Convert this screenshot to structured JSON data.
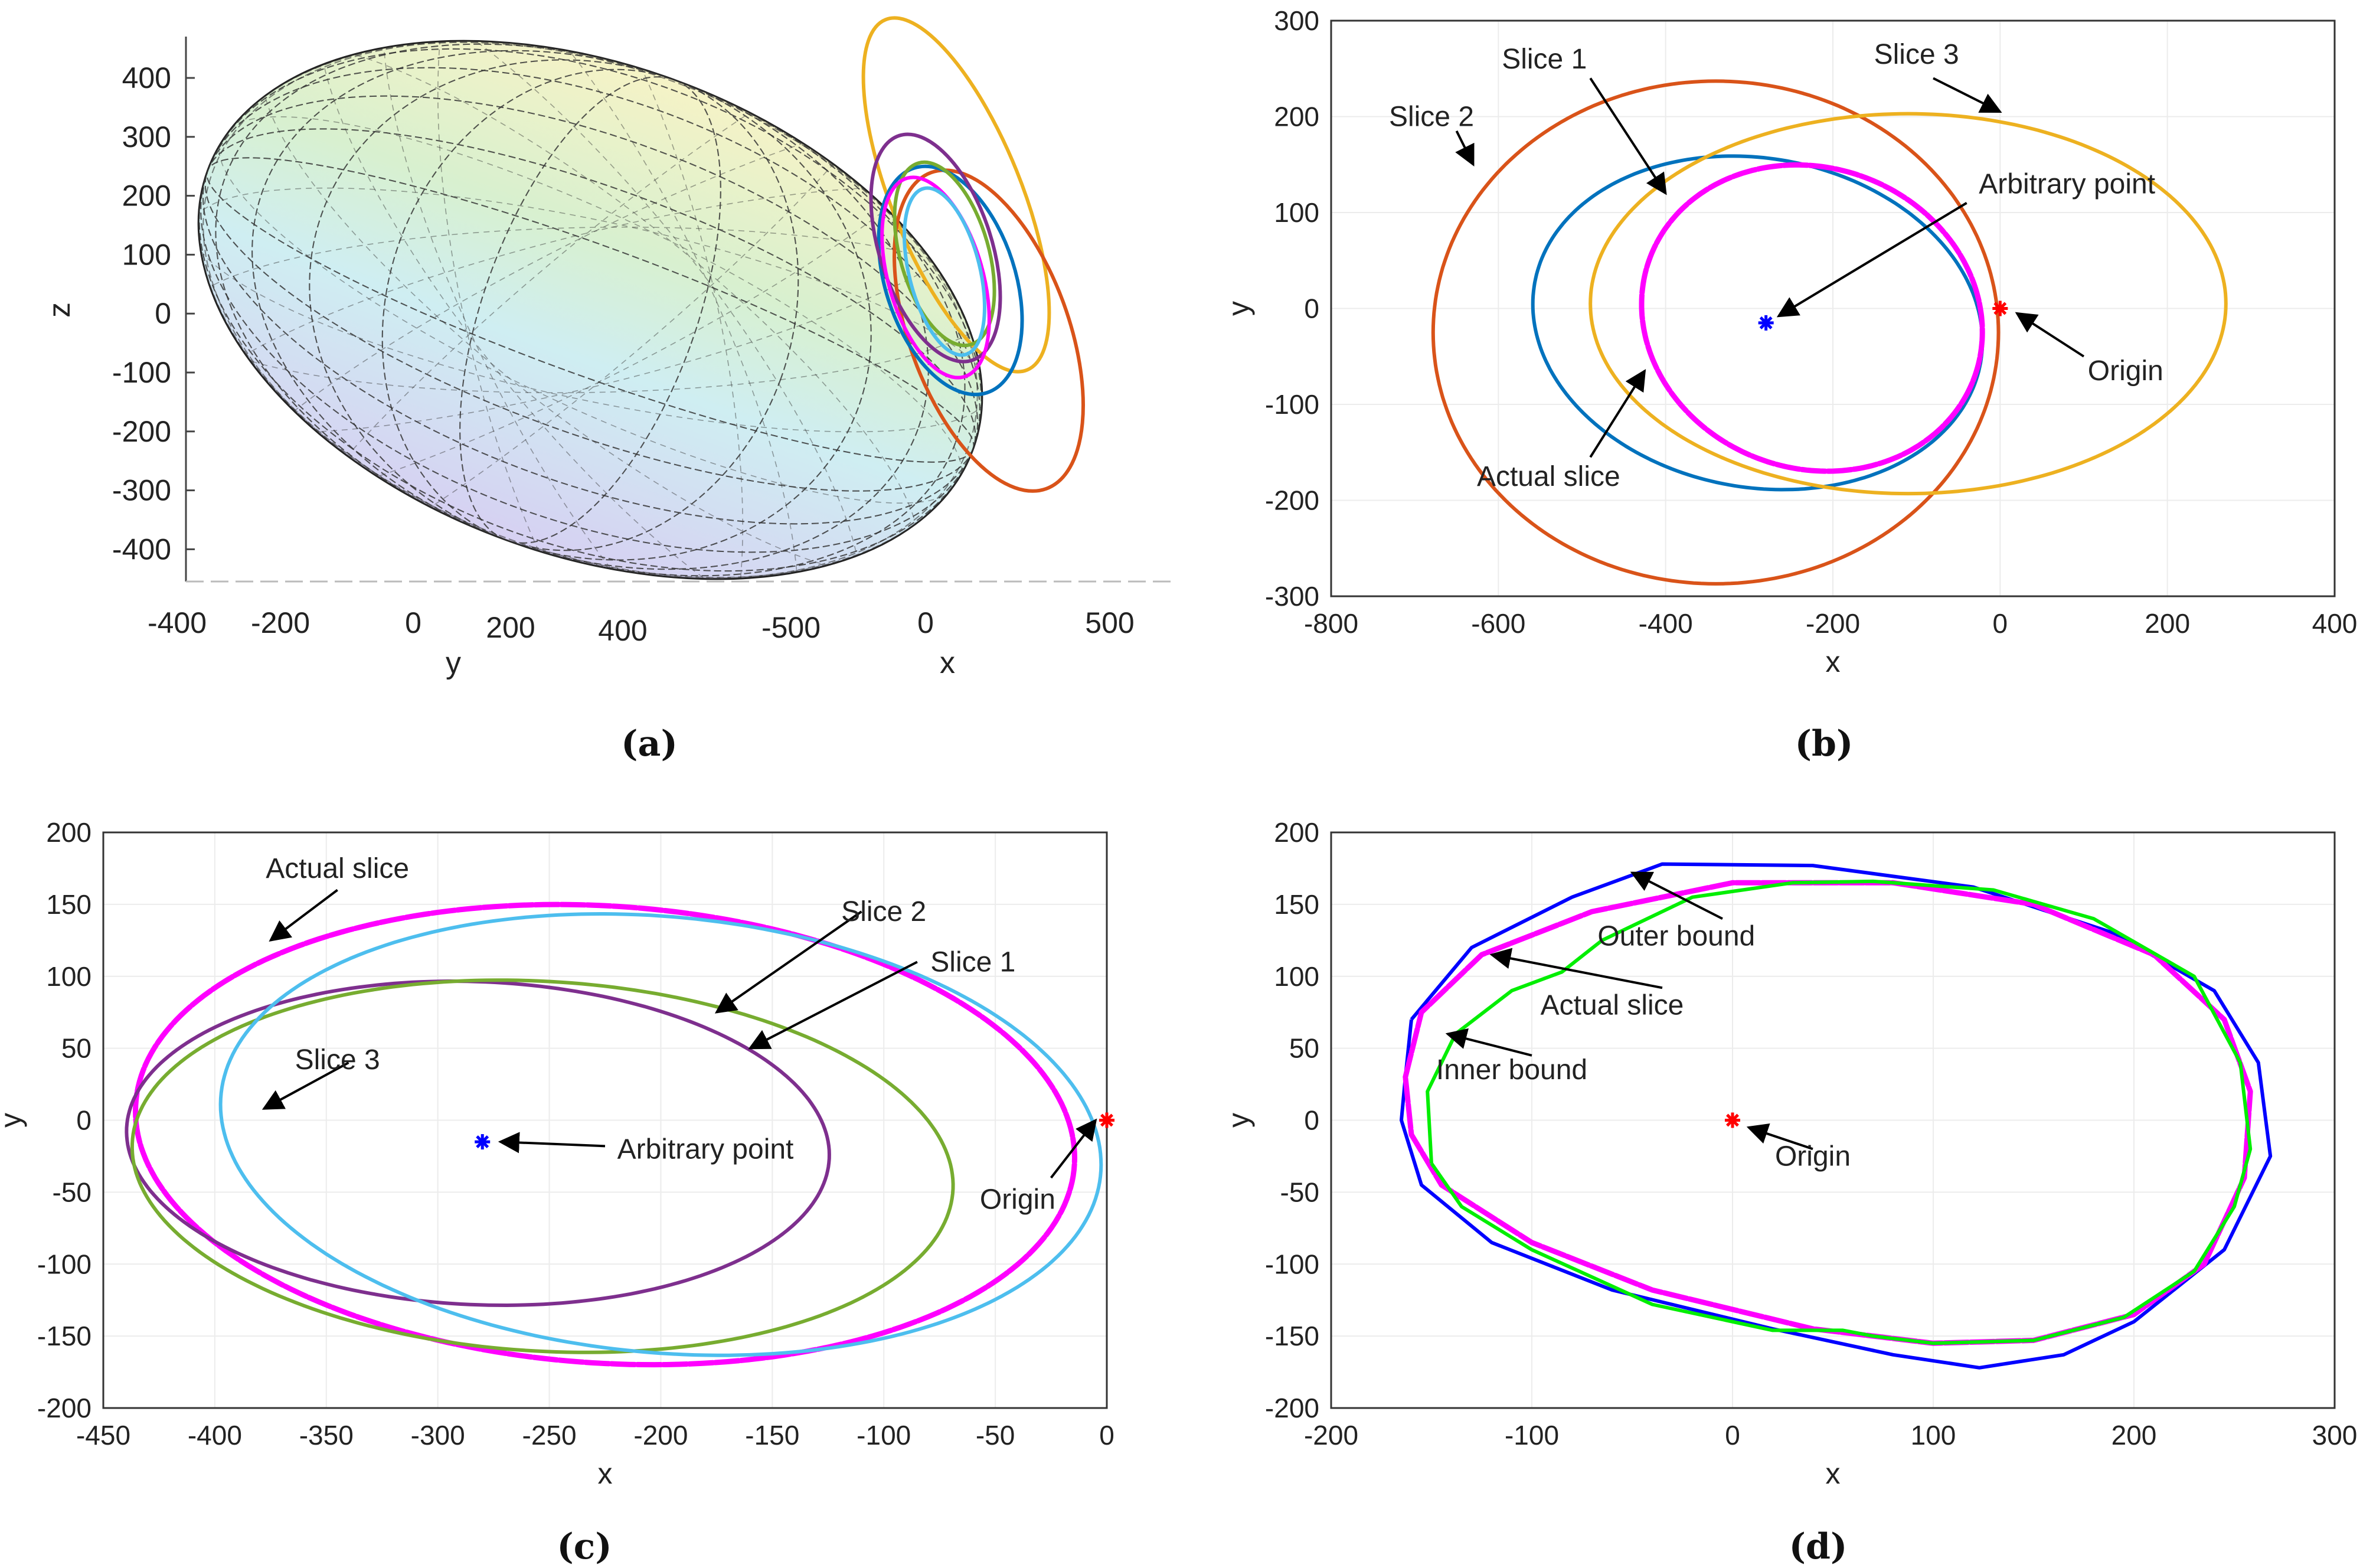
{
  "panels": [
    {
      "id": "a",
      "caption": "(a)",
      "type": "surface3d",
      "xlabel": "y",
      "xlabel2": "x",
      "zlabel": "z",
      "ztick_labels": [
        "400",
        "300",
        "200",
        "100",
        "0",
        "-100",
        "-200",
        "-300",
        "-400"
      ],
      "ytick_labels": [
        "-400",
        "-200",
        "0",
        "200",
        "400"
      ],
      "xtick_labels": [
        "-500",
        "0",
        "500"
      ],
      "ellipse_colors": [
        "#EDB120",
        "#D95319",
        "#0072BD",
        "#77AC30",
        "#7E2F8E",
        "#FF00FF",
        "#4DBEEE"
      ]
    }
  ],
  "chart_data": [
    {
      "panel": "b",
      "type": "line",
      "xlabel": "x",
      "ylabel": "y",
      "xlim": [
        -800,
        400
      ],
      "ylim": [
        -300,
        300
      ],
      "xticks": [
        -800,
        -600,
        -400,
        -200,
        0,
        200,
        400
      ],
      "yticks": [
        -300,
        -200,
        -100,
        0,
        100,
        200,
        300
      ],
      "xtick_labels": [
        "-800",
        "-600",
        "-400",
        "-200",
        "0",
        "200",
        "400"
      ],
      "ytick_labels": [
        "-300",
        "-200",
        "-100",
        "0",
        "100",
        "200",
        "300"
      ],
      "series": [
        {
          "name": "Slice 1",
          "color": "#0072BD",
          "shape": "ellipse",
          "cx": -290,
          "cy": -15,
          "rx": 270,
          "ry": 172,
          "rot": -7
        },
        {
          "name": "Slice 2",
          "color": "#D95319",
          "shape": "ellipse",
          "cx": -340,
          "cy": -25,
          "rx": 338,
          "ry": 262,
          "rot": 0
        },
        {
          "name": "Slice 3",
          "color": "#EDB120",
          "shape": "ellipse",
          "cx": -110,
          "cy": 5,
          "rx": 380,
          "ry": 198,
          "rot": 0
        },
        {
          "name": "Actual slice",
          "color": "#FF00FF",
          "shape": "ellipse",
          "cx": -225,
          "cy": -10,
          "rx": 205,
          "ry": 158,
          "rot": -10,
          "dotted": true
        }
      ],
      "markers": [
        {
          "name": "Arbitrary point",
          "x": -280,
          "y": -15,
          "color": "#0000FF"
        },
        {
          "name": "Origin",
          "x": 0,
          "y": 0,
          "color": "#FF0000"
        }
      ],
      "annotations": [
        {
          "text": "Slice 1",
          "tx": -545,
          "ty": 260,
          "ax": -490,
          "ay": 240,
          "hx": -400,
          "hy": 120
        },
        {
          "text": "Slice 2",
          "tx": -680,
          "ty": 200,
          "ax": -650,
          "ay": 185,
          "hx": -630,
          "hy": 150
        },
        {
          "text": "Slice 3",
          "tx": -100,
          "ty": 265,
          "ax": -80,
          "ay": 240,
          "hx": 0,
          "hy": 205
        },
        {
          "text": "Arbitrary point",
          "tx": 80,
          "ty": 130,
          "ax": -40,
          "ay": 110,
          "hx": -265,
          "hy": -8
        },
        {
          "text": "Origin",
          "tx": 150,
          "ty": -65,
          "ax": 100,
          "ay": -50,
          "hx": 20,
          "hy": -5
        },
        {
          "text": "Actual slice",
          "tx": -540,
          "ty": -175,
          "ax": -490,
          "ay": -155,
          "hx": -425,
          "hy": -65
        }
      ]
    },
    {
      "panel": "c",
      "type": "line",
      "xlabel": "x",
      "ylabel": "y",
      "xlim": [
        -450,
        0
      ],
      "ylim": [
        -200,
        200
      ],
      "xticks": [
        -450,
        -400,
        -350,
        -300,
        -250,
        -200,
        -150,
        -100,
        -50,
        0
      ],
      "yticks": [
        -200,
        -150,
        -100,
        -50,
        0,
        50,
        100,
        150,
        200
      ],
      "xtick_labels": [
        "-450",
        "-400",
        "-350",
        "-300",
        "-250",
        "-200",
        "-150",
        "-100",
        "-50",
        "0"
      ],
      "ytick_labels": [
        "-200",
        "-150",
        "-100",
        "-50",
        "0",
        "50",
        "100",
        "150",
        "200"
      ],
      "series": [
        {
          "name": "Actual slice",
          "color": "#FF00FF",
          "shape": "ellipse",
          "cx": -225,
          "cy": -10,
          "rx": 212,
          "ry": 158,
          "rot": -10,
          "dotted": true
        },
        {
          "name": "Slice 1",
          "color": "#7E2F8E",
          "shape": "ellipse",
          "cx": -282,
          "cy": -16,
          "rx": 158,
          "ry": 112,
          "rot": -6
        },
        {
          "name": "Slice 2",
          "color": "#77AC30",
          "shape": "ellipse",
          "cx": -253,
          "cy": -32,
          "rx": 185,
          "ry": 128,
          "rot": -8
        },
        {
          "name": "Slice 3",
          "color": "#4DBEEE",
          "shape": "ellipse",
          "cx": -200,
          "cy": -10,
          "rx": 200,
          "ry": 150,
          "rot": -14
        }
      ],
      "markers": [
        {
          "name": "Arbitrary point",
          "x": -280,
          "y": -15,
          "color": "#0000FF"
        },
        {
          "name": "Origin",
          "x": 0,
          "y": 0,
          "color": "#FF0000"
        }
      ],
      "annotations": [
        {
          "text": "Actual slice",
          "tx": -345,
          "ty": 175,
          "ax": -345,
          "ay": 160,
          "hx": -375,
          "hy": 125
        },
        {
          "text": "Slice 2",
          "tx": -100,
          "ty": 145,
          "ax": -110,
          "ay": 145,
          "hx": -175,
          "hy": 75
        },
        {
          "text": "Slice 1",
          "tx": -60,
          "ty": 110,
          "ax": -85,
          "ay": 110,
          "hx": -160,
          "hy": 50
        },
        {
          "text": "Slice 3",
          "tx": -345,
          "ty": 42,
          "ax": -340,
          "ay": 40,
          "hx": -378,
          "hy": 8
        },
        {
          "text": "Arbitrary point",
          "tx": -180,
          "ty": -20,
          "ax": -225,
          "ay": -18,
          "hx": -272,
          "hy": -15
        },
        {
          "text": "Origin",
          "tx": -40,
          "ty": -55,
          "ax": -25,
          "ay": -40,
          "hx": -5,
          "hy": 0
        }
      ]
    },
    {
      "panel": "d",
      "type": "line",
      "xlabel": "x",
      "ylabel": "y",
      "xlim": [
        -200,
        300
      ],
      "ylim": [
        -200,
        200
      ],
      "xticks": [
        -200,
        -100,
        0,
        100,
        200,
        300
      ],
      "yticks": [
        -200,
        -150,
        -100,
        -50,
        0,
        50,
        100,
        150,
        200
      ],
      "xtick_labels": [
        "-200",
        "-100",
        "0",
        "100",
        "200",
        "300"
      ],
      "ytick_labels": [
        "-200",
        "-150",
        "-100",
        "-50",
        "0",
        "50",
        "100",
        "150",
        "200"
      ],
      "series": [
        {
          "name": "Outer bound",
          "color": "#0000FF",
          "shape": "polyline",
          "points": [
            [
              -160,
              70
            ],
            [
              -130,
              120
            ],
            [
              -80,
              155
            ],
            [
              -35,
              178
            ],
            [
              40,
              177
            ],
            [
              120,
              162
            ],
            [
              190,
              130
            ],
            [
              240,
              90
            ],
            [
              262,
              40
            ],
            [
              268,
              -25
            ],
            [
              245,
              -90
            ],
            [
              200,
              -140
            ],
            [
              165,
              -163
            ],
            [
              123,
              -172
            ],
            [
              80,
              -163
            ],
            [
              20,
              -145
            ],
            [
              -60,
              -118
            ],
            [
              -120,
              -85
            ],
            [
              -155,
              -45
            ],
            [
              -165,
              0
            ],
            [
              -163,
              30
            ],
            [
              -160,
              70
            ]
          ]
        },
        {
          "name": "Actual slice",
          "color": "#FF00FF",
          "shape": "polyline",
          "dotted": true,
          "points": [
            [
              -163,
              30
            ],
            [
              -155,
              75
            ],
            [
              -125,
              115
            ],
            [
              -70,
              145
            ],
            [
              0,
              165
            ],
            [
              80,
              165
            ],
            [
              150,
              150
            ],
            [
              210,
              115
            ],
            [
              245,
              70
            ],
            [
              258,
              20
            ],
            [
              255,
              -40
            ],
            [
              235,
              -100
            ],
            [
              200,
              -135
            ],
            [
              150,
              -153
            ],
            [
              100,
              -155
            ],
            [
              40,
              -145
            ],
            [
              -40,
              -118
            ],
            [
              -100,
              -85
            ],
            [
              -145,
              -45
            ],
            [
              -160,
              -10
            ],
            [
              -163,
              30
            ]
          ]
        },
        {
          "name": "Inner bound",
          "color": "#00EE00",
          "shape": "polyline",
          "points": [
            [
              -150,
              -30
            ],
            [
              -152,
              20
            ],
            [
              -138,
              60
            ],
            [
              -110,
              90
            ],
            [
              -85,
              103
            ],
            [
              -65,
              125
            ],
            [
              -20,
              155
            ],
            [
              30,
              165
            ],
            [
              70,
              166
            ],
            [
              130,
              160
            ],
            [
              180,
              140
            ],
            [
              230,
              100
            ],
            [
              253,
              40
            ],
            [
              258,
              -20
            ],
            [
              250,
              -60
            ],
            [
              230,
              -105
            ],
            [
              195,
              -137
            ],
            [
              150,
              -153
            ],
            [
              100,
              -155
            ],
            [
              70,
              -150
            ],
            [
              55,
              -146
            ],
            [
              20,
              -146
            ],
            [
              -40,
              -128
            ],
            [
              -100,
              -90
            ],
            [
              -135,
              -60
            ],
            [
              -150,
              -30
            ]
          ]
        }
      ],
      "markers": [
        {
          "name": "Origin",
          "x": 0,
          "y": 0,
          "color": "#FF0000"
        }
      ],
      "annotations": [
        {
          "text": "Outer bound",
          "tx": -28,
          "ty": 128,
          "ax": -5,
          "ay": 140,
          "hx": -50,
          "hy": 172
        },
        {
          "text": "Actual slice",
          "tx": -60,
          "ty": 80,
          "ax": -35,
          "ay": 92,
          "hx": -120,
          "hy": 115
        },
        {
          "text": "Inner bound",
          "tx": -110,
          "ty": 35,
          "ax": -100,
          "ay": 45,
          "hx": -142,
          "hy": 60
        },
        {
          "text": "Origin",
          "tx": 40,
          "ty": -25,
          "ax": 40,
          "ay": -20,
          "hx": 8,
          "hy": -5
        }
      ]
    }
  ],
  "captions": {
    "b": "(b)",
    "c": "(c)",
    "d": "(d)"
  }
}
